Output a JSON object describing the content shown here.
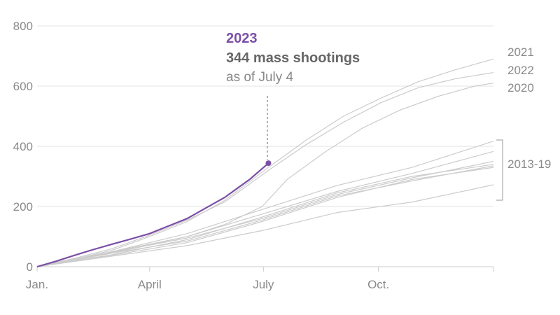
{
  "chart_data": {
    "type": "line",
    "title": "",
    "xlabel": "",
    "ylabel": "",
    "ylim": [
      0,
      800
    ],
    "xlim_days": [
      0,
      365
    ],
    "yticks": [
      "0",
      "200",
      "400",
      "600",
      "800"
    ],
    "xticks": [
      {
        "label": "Jan.",
        "day": 0
      },
      {
        "label": "April",
        "day": 90
      },
      {
        "label": "July",
        "day": 181
      },
      {
        "label": "Oct.",
        "day": 273
      }
    ],
    "grid": true,
    "highlight_color": "#7b4fa6",
    "other_color": "#cccccc",
    "annotation": {
      "year": "2023",
      "count_text": "344 mass shootings",
      "date_text": "as of July 4",
      "day": 185,
      "value": 344
    },
    "group_label": "2013-19",
    "series": [
      {
        "name": "2023",
        "highlight": true,
        "points": [
          [
            0,
            0
          ],
          [
            15,
            18
          ],
          [
            30,
            38
          ],
          [
            45,
            57
          ],
          [
            60,
            75
          ],
          [
            75,
            92
          ],
          [
            90,
            110
          ],
          [
            105,
            135
          ],
          [
            120,
            160
          ],
          [
            135,
            195
          ],
          [
            150,
            230
          ],
          [
            160,
            260
          ],
          [
            170,
            290
          ],
          [
            185,
            344
          ]
        ]
      },
      {
        "name": "2021",
        "label": true,
        "points": [
          [
            0,
            0
          ],
          [
            30,
            25
          ],
          [
            60,
            55
          ],
          [
            90,
            100
          ],
          [
            120,
            150
          ],
          [
            150,
            220
          ],
          [
            185,
            330
          ],
          [
            215,
            420
          ],
          [
            245,
            500
          ],
          [
            275,
            560
          ],
          [
            305,
            615
          ],
          [
            335,
            655
          ],
          [
            365,
            690
          ]
        ]
      },
      {
        "name": "2022",
        "label": true,
        "points": [
          [
            0,
            0
          ],
          [
            30,
            28
          ],
          [
            60,
            60
          ],
          [
            90,
            105
          ],
          [
            120,
            155
          ],
          [
            150,
            215
          ],
          [
            185,
            320
          ],
          [
            215,
            405
          ],
          [
            245,
            480
          ],
          [
            275,
            545
          ],
          [
            305,
            595
          ],
          [
            335,
            625
          ],
          [
            365,
            645
          ]
        ]
      },
      {
        "name": "2020",
        "label": true,
        "points": [
          [
            0,
            0
          ],
          [
            30,
            22
          ],
          [
            60,
            50
          ],
          [
            90,
            75
          ],
          [
            120,
            100
          ],
          [
            150,
            140
          ],
          [
            180,
            200
          ],
          [
            200,
            290
          ],
          [
            230,
            380
          ],
          [
            260,
            460
          ],
          [
            290,
            520
          ],
          [
            320,
            565
          ],
          [
            350,
            600
          ],
          [
            365,
            610
          ]
        ]
      },
      {
        "name": "2019",
        "points": [
          [
            0,
            0
          ],
          [
            60,
            50
          ],
          [
            120,
            110
          ],
          [
            180,
            190
          ],
          [
            240,
            270
          ],
          [
            300,
            330
          ],
          [
            365,
            417
          ]
        ]
      },
      {
        "name": "2018",
        "points": [
          [
            0,
            0
          ],
          [
            60,
            45
          ],
          [
            120,
            100
          ],
          [
            180,
            175
          ],
          [
            240,
            250
          ],
          [
            300,
            310
          ],
          [
            365,
            383
          ]
        ]
      },
      {
        "name": "2017",
        "points": [
          [
            0,
            0
          ],
          [
            60,
            48
          ],
          [
            120,
            95
          ],
          [
            180,
            160
          ],
          [
            240,
            240
          ],
          [
            300,
            295
          ],
          [
            365,
            350
          ]
        ]
      },
      {
        "name": "2016",
        "points": [
          [
            0,
            0
          ],
          [
            60,
            40
          ],
          [
            120,
            90
          ],
          [
            180,
            165
          ],
          [
            240,
            245
          ],
          [
            300,
            300
          ],
          [
            365,
            340
          ]
        ]
      },
      {
        "name": "2015",
        "points": [
          [
            0,
            0
          ],
          [
            60,
            45
          ],
          [
            120,
            85
          ],
          [
            180,
            155
          ],
          [
            240,
            235
          ],
          [
            300,
            285
          ],
          [
            365,
            335
          ]
        ]
      },
      {
        "name": "2014",
        "points": [
          [
            0,
            0
          ],
          [
            60,
            38
          ],
          [
            120,
            80
          ],
          [
            180,
            150
          ],
          [
            240,
            230
          ],
          [
            300,
            290
          ],
          [
            365,
            330
          ]
        ]
      },
      {
        "name": "2013",
        "points": [
          [
            0,
            0
          ],
          [
            60,
            35
          ],
          [
            120,
            70
          ],
          [
            180,
            120
          ],
          [
            240,
            180
          ],
          [
            300,
            215
          ],
          [
            365,
            272
          ]
        ]
      }
    ]
  }
}
